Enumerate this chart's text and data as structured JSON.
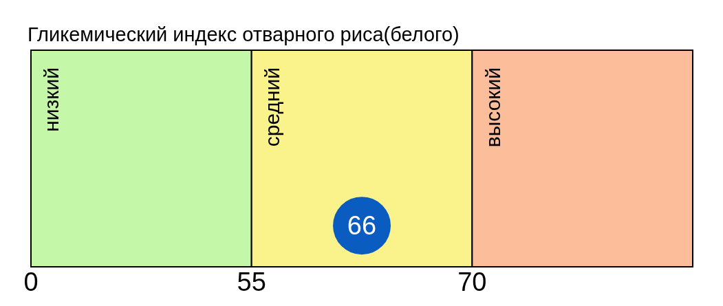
{
  "chart_data": {
    "type": "other",
    "title": "Гликемический индекс отварного риса(белого)",
    "categories": [
      null,
      null,
      null
    ],
    "bands": [
      {
        "axis": "x",
        "label": "низкий",
        "color": "#c4f7a8"
      },
      {
        "axis": "x",
        "label": "средний",
        "color": "#faf38c"
      },
      {
        "axis": "x",
        "label": "высокий",
        "color": "#fcbd9a"
      }
    ],
    "annotations": [
      "0",
      "55",
      "70"
    ],
    "values": [
      null,
      66,
      null
    ],
    "data_labels": true,
    "color": "#0a5cc0"
  }
}
